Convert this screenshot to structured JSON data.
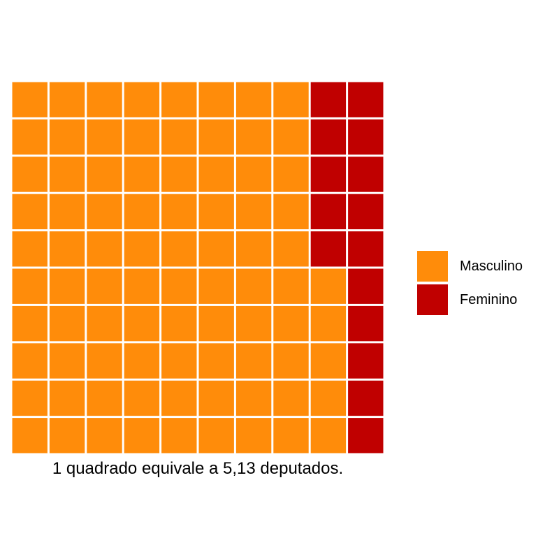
{
  "chart_data": {
    "type": "waffle",
    "rows": 10,
    "columns": 10,
    "fill_order": "column-wise, from left; within column from bottom",
    "series": [
      {
        "name": "Masculino",
        "squares": 85,
        "color": "#FF8C0A"
      },
      {
        "name": "Feminino",
        "squares": 15,
        "color": "#C00000"
      }
    ],
    "caption": "1 quadrado equivale a 5,13 deputados.",
    "legend_position": "right"
  },
  "legend": {
    "items": [
      {
        "label": "Masculino",
        "color": "#FF8C0A"
      },
      {
        "label": "Feminino",
        "color": "#C00000"
      }
    ]
  },
  "colors": {
    "background": "#FFFFFF",
    "separator": "#FFFFFF"
  }
}
